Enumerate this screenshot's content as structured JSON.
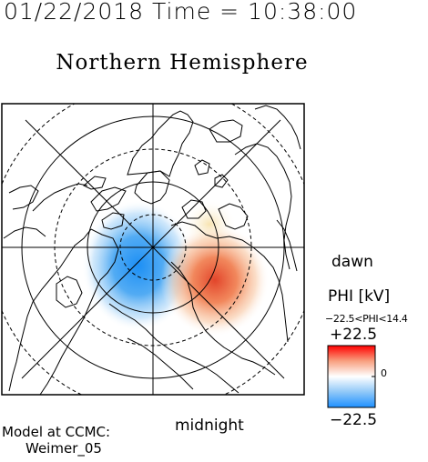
{
  "header": {
    "timestamp": "01/22/2018 Time = 10:38:00",
    "title": "Northern Hemisphere"
  },
  "map_labels": {
    "dawn": "dawn",
    "midnight": "midnight"
  },
  "colorbar": {
    "label": "PHI [kV]",
    "range_text": "−22.5<PHI<14.4",
    "max_label": "+22.5",
    "min_label": "−22.5",
    "zero_label": "0",
    "min_value": -22.5,
    "max_value": 22.5,
    "colors": [
      "#1e90ff",
      "#ffffff",
      "#ff0000"
    ]
  },
  "credit": {
    "line1": "Model at CCMC:",
    "line2": "Weimer_05"
  },
  "potential_cells": [
    {
      "sign": "negative",
      "peak_kv": -22.5,
      "color": "#2a8ff0"
    },
    {
      "sign": "positive",
      "peak_kv": 14.4,
      "color": "#e05030"
    }
  ]
}
